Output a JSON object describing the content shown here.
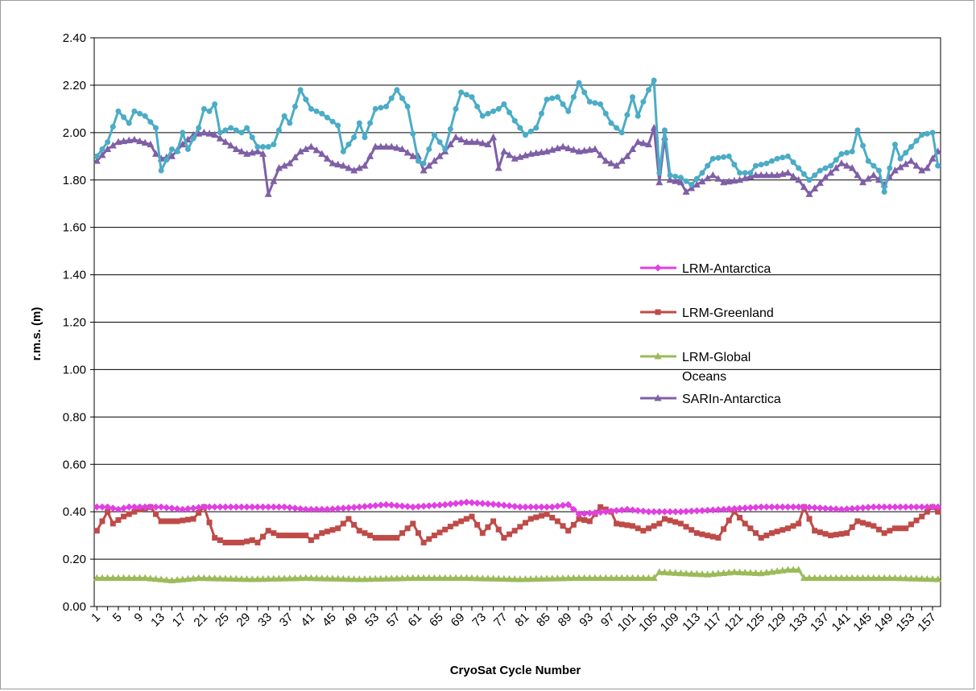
{
  "chart_data": {
    "type": "line",
    "title": "",
    "xlabel": "CryoSat Cycle Number",
    "ylabel": "r.m.s. (m)",
    "ylim": [
      0,
      2.4
    ],
    "yticks": [
      "0.00",
      "0.20",
      "0.40",
      "0.60",
      "0.80",
      "1.00",
      "1.20",
      "1.40",
      "1.60",
      "1.80",
      "2.00",
      "2.20",
      "2.40"
    ],
    "xlim": [
      1,
      158
    ],
    "xticks": [
      1,
      5,
      9,
      13,
      17,
      21,
      25,
      29,
      33,
      37,
      41,
      45,
      49,
      53,
      57,
      61,
      65,
      69,
      73,
      77,
      81,
      85,
      89,
      93,
      97,
      101,
      105,
      109,
      113,
      117,
      121,
      125,
      129,
      133,
      137,
      141,
      145,
      149,
      153,
      157
    ],
    "grid": "horizontal",
    "legend_position": "right-middle",
    "series": [
      {
        "name": "LRM-Antarctica",
        "color": "#e040e0",
        "marker": "diamond",
        "anchors": [
          [
            1,
            0.42
          ],
          [
            3,
            0.42
          ],
          [
            5,
            0.41
          ],
          [
            7,
            0.42
          ],
          [
            13,
            0.42
          ],
          [
            17,
            0.41
          ],
          [
            21,
            0.42
          ],
          [
            26,
            0.42
          ],
          [
            30,
            0.42
          ],
          [
            36,
            0.42
          ],
          [
            40,
            0.41
          ],
          [
            44,
            0.41
          ],
          [
            50,
            0.42
          ],
          [
            55,
            0.43
          ],
          [
            60,
            0.42
          ],
          [
            66,
            0.43
          ],
          [
            70,
            0.44
          ],
          [
            76,
            0.43
          ],
          [
            80,
            0.42
          ],
          [
            86,
            0.42
          ],
          [
            89,
            0.43
          ],
          [
            91,
            0.39
          ],
          [
            96,
            0.4
          ],
          [
            100,
            0.41
          ],
          [
            104,
            0.4
          ],
          [
            110,
            0.4
          ],
          [
            118,
            0.41
          ],
          [
            125,
            0.42
          ],
          [
            133,
            0.42
          ],
          [
            140,
            0.41
          ],
          [
            146,
            0.42
          ],
          [
            150,
            0.42
          ],
          [
            158,
            0.42
          ]
        ]
      },
      {
        "name": "LRM-Greenland",
        "color": "#be4b48",
        "marker": "square",
        "anchors": [
          [
            1,
            0.32
          ],
          [
            3,
            0.4
          ],
          [
            4,
            0.35
          ],
          [
            6,
            0.38
          ],
          [
            9,
            0.41
          ],
          [
            11,
            0.42
          ],
          [
            13,
            0.36
          ],
          [
            16,
            0.36
          ],
          [
            19,
            0.37
          ],
          [
            21,
            0.42
          ],
          [
            23,
            0.29
          ],
          [
            25,
            0.27
          ],
          [
            28,
            0.27
          ],
          [
            30,
            0.28
          ],
          [
            31,
            0.27
          ],
          [
            33,
            0.32
          ],
          [
            35,
            0.3
          ],
          [
            40,
            0.3
          ],
          [
            41,
            0.28
          ],
          [
            43,
            0.31
          ],
          [
            46,
            0.33
          ],
          [
            48,
            0.37
          ],
          [
            50,
            0.32
          ],
          [
            53,
            0.29
          ],
          [
            57,
            0.29
          ],
          [
            60,
            0.35
          ],
          [
            62,
            0.27
          ],
          [
            64,
            0.3
          ],
          [
            68,
            0.35
          ],
          [
            71,
            0.38
          ],
          [
            73,
            0.31
          ],
          [
            75,
            0.36
          ],
          [
            77,
            0.29
          ],
          [
            79,
            0.32
          ],
          [
            82,
            0.37
          ],
          [
            85,
            0.39
          ],
          [
            87,
            0.36
          ],
          [
            89,
            0.32
          ],
          [
            91,
            0.37
          ],
          [
            93,
            0.36
          ],
          [
            95,
            0.42
          ],
          [
            97,
            0.4
          ],
          [
            98,
            0.35
          ],
          [
            101,
            0.34
          ],
          [
            103,
            0.32
          ],
          [
            106,
            0.35
          ],
          [
            107,
            0.37
          ],
          [
            110,
            0.35
          ],
          [
            113,
            0.31
          ],
          [
            117,
            0.29
          ],
          [
            120,
            0.4
          ],
          [
            122,
            0.35
          ],
          [
            125,
            0.29
          ],
          [
            127,
            0.31
          ],
          [
            130,
            0.33
          ],
          [
            132,
            0.35
          ],
          [
            133,
            0.42
          ],
          [
            135,
            0.32
          ],
          [
            138,
            0.3
          ],
          [
            141,
            0.31
          ],
          [
            143,
            0.36
          ],
          [
            146,
            0.34
          ],
          [
            148,
            0.31
          ],
          [
            150,
            0.33
          ],
          [
            152,
            0.33
          ],
          [
            155,
            0.38
          ],
          [
            157,
            0.42
          ],
          [
            158,
            0.4
          ]
        ]
      },
      {
        "name": "LRM-Global Oceans",
        "color": "#9bbb59",
        "marker": "triangle",
        "anchors": [
          [
            1,
            0.12
          ],
          [
            10,
            0.12
          ],
          [
            15,
            0.11
          ],
          [
            20,
            0.12
          ],
          [
            30,
            0.115
          ],
          [
            40,
            0.12
          ],
          [
            50,
            0.115
          ],
          [
            60,
            0.12
          ],
          [
            70,
            0.12
          ],
          [
            80,
            0.115
          ],
          [
            90,
            0.12
          ],
          [
            105,
            0.12
          ],
          [
            106,
            0.145
          ],
          [
            110,
            0.14
          ],
          [
            115,
            0.135
          ],
          [
            120,
            0.145
          ],
          [
            125,
            0.14
          ],
          [
            130,
            0.155
          ],
          [
            132,
            0.155
          ],
          [
            133,
            0.12
          ],
          [
            140,
            0.12
          ],
          [
            150,
            0.12
          ],
          [
            158,
            0.115
          ]
        ]
      },
      {
        "name": "SARIn-Antarctica",
        "color": "#7f5fa6",
        "marker": "triangle",
        "anchors": [
          [
            1,
            1.88
          ],
          [
            3,
            1.93
          ],
          [
            5,
            1.96
          ],
          [
            8,
            1.97
          ],
          [
            11,
            1.95
          ],
          [
            12,
            1.91
          ],
          [
            13,
            1.89
          ],
          [
            15,
            1.9
          ],
          [
            17,
            1.95
          ],
          [
            19,
            1.99
          ],
          [
            21,
            2.0
          ],
          [
            23,
            1.99
          ],
          [
            25,
            1.96
          ],
          [
            27,
            1.93
          ],
          [
            29,
            1.91
          ],
          [
            31,
            1.92
          ],
          [
            32,
            1.91
          ],
          [
            33,
            1.74
          ],
          [
            35,
            1.85
          ],
          [
            37,
            1.87
          ],
          [
            39,
            1.92
          ],
          [
            41,
            1.94
          ],
          [
            43,
            1.91
          ],
          [
            45,
            1.87
          ],
          [
            47,
            1.86
          ],
          [
            49,
            1.84
          ],
          [
            51,
            1.86
          ],
          [
            53,
            1.94
          ],
          [
            56,
            1.94
          ],
          [
            58,
            1.93
          ],
          [
            60,
            1.9
          ],
          [
            61,
            1.9
          ],
          [
            62,
            1.84
          ],
          [
            64,
            1.88
          ],
          [
            66,
            1.92
          ],
          [
            68,
            1.98
          ],
          [
            70,
            1.96
          ],
          [
            72,
            1.96
          ],
          [
            74,
            1.95
          ],
          [
            75,
            1.98
          ],
          [
            76,
            1.85
          ],
          [
            77,
            1.92
          ],
          [
            79,
            1.89
          ],
          [
            82,
            1.91
          ],
          [
            85,
            1.92
          ],
          [
            88,
            1.94
          ],
          [
            91,
            1.92
          ],
          [
            94,
            1.93
          ],
          [
            96,
            1.88
          ],
          [
            98,
            1.86
          ],
          [
            100,
            1.9
          ],
          [
            102,
            1.96
          ],
          [
            104,
            1.95
          ],
          [
            105,
            2.02
          ],
          [
            106,
            1.79
          ],
          [
            107,
            1.98
          ],
          [
            108,
            1.8
          ],
          [
            110,
            1.79
          ],
          [
            111,
            1.75
          ],
          [
            113,
            1.78
          ],
          [
            116,
            1.82
          ],
          [
            118,
            1.79
          ],
          [
            121,
            1.8
          ],
          [
            124,
            1.82
          ],
          [
            128,
            1.82
          ],
          [
            130,
            1.83
          ],
          [
            132,
            1.8
          ],
          [
            134,
            1.74
          ],
          [
            137,
            1.81
          ],
          [
            140,
            1.87
          ],
          [
            142,
            1.85
          ],
          [
            144,
            1.79
          ],
          [
            146,
            1.82
          ],
          [
            148,
            1.78
          ],
          [
            150,
            1.84
          ],
          [
            153,
            1.88
          ],
          [
            155,
            1.84
          ],
          [
            156,
            1.85
          ],
          [
            157,
            1.89
          ],
          [
            158,
            1.92
          ]
        ]
      },
      {
        "name": "",
        "color": "#4bacc6",
        "marker": "circle",
        "anchors": [
          [
            1,
            1.9
          ],
          [
            3,
            1.96
          ],
          [
            5,
            2.09
          ],
          [
            7,
            2.04
          ],
          [
            8,
            2.09
          ],
          [
            10,
            2.07
          ],
          [
            12,
            2.02
          ],
          [
            13,
            1.84
          ],
          [
            15,
            1.93
          ],
          [
            16,
            1.92
          ],
          [
            17,
            2.0
          ],
          [
            18,
            1.93
          ],
          [
            20,
            2.02
          ],
          [
            21,
            2.1
          ],
          [
            22,
            2.09
          ],
          [
            23,
            2.12
          ],
          [
            24,
            2.0
          ],
          [
            26,
            2.02
          ],
          [
            28,
            2.0
          ],
          [
            29,
            2.02
          ],
          [
            31,
            1.94
          ],
          [
            33,
            1.94
          ],
          [
            34,
            1.95
          ],
          [
            36,
            2.07
          ],
          [
            37,
            2.04
          ],
          [
            39,
            2.18
          ],
          [
            41,
            2.1
          ],
          [
            43,
            2.08
          ],
          [
            46,
            2.03
          ],
          [
            47,
            1.92
          ],
          [
            49,
            1.98
          ],
          [
            50,
            2.04
          ],
          [
            51,
            1.98
          ],
          [
            53,
            2.1
          ],
          [
            55,
            2.11
          ],
          [
            57,
            2.18
          ],
          [
            59,
            2.11
          ],
          [
            61,
            1.88
          ],
          [
            62,
            1.87
          ],
          [
            64,
            1.99
          ],
          [
            66,
            1.93
          ],
          [
            68,
            2.1
          ],
          [
            69,
            2.17
          ],
          [
            71,
            2.15
          ],
          [
            73,
            2.07
          ],
          [
            76,
            2.1
          ],
          [
            77,
            2.12
          ],
          [
            79,
            2.05
          ],
          [
            81,
            1.99
          ],
          [
            83,
            2.02
          ],
          [
            85,
            2.14
          ],
          [
            87,
            2.15
          ],
          [
            89,
            2.09
          ],
          [
            91,
            2.21
          ],
          [
            93,
            2.13
          ],
          [
            95,
            2.12
          ],
          [
            97,
            2.04
          ],
          [
            99,
            2.0
          ],
          [
            101,
            2.15
          ],
          [
            102,
            2.07
          ],
          [
            103,
            2.13
          ],
          [
            104,
            2.18
          ],
          [
            105,
            2.22
          ],
          [
            106,
            1.83
          ],
          [
            107,
            2.01
          ],
          [
            108,
            1.82
          ],
          [
            110,
            1.81
          ],
          [
            112,
            1.78
          ],
          [
            114,
            1.83
          ],
          [
            116,
            1.89
          ],
          [
            119,
            1.9
          ],
          [
            121,
            1.83
          ],
          [
            123,
            1.83
          ],
          [
            124,
            1.86
          ],
          [
            126,
            1.87
          ],
          [
            128,
            1.89
          ],
          [
            130,
            1.9
          ],
          [
            132,
            1.85
          ],
          [
            134,
            1.8
          ],
          [
            136,
            1.84
          ],
          [
            138,
            1.86
          ],
          [
            140,
            1.91
          ],
          [
            142,
            1.92
          ],
          [
            143,
            2.01
          ],
          [
            145,
            1.88
          ],
          [
            147,
            1.84
          ],
          [
            148,
            1.75
          ],
          [
            150,
            1.95
          ],
          [
            151,
            1.89
          ],
          [
            153,
            1.94
          ],
          [
            155,
            1.99
          ],
          [
            157,
            2.0
          ],
          [
            158,
            1.86
          ]
        ]
      }
    ]
  }
}
